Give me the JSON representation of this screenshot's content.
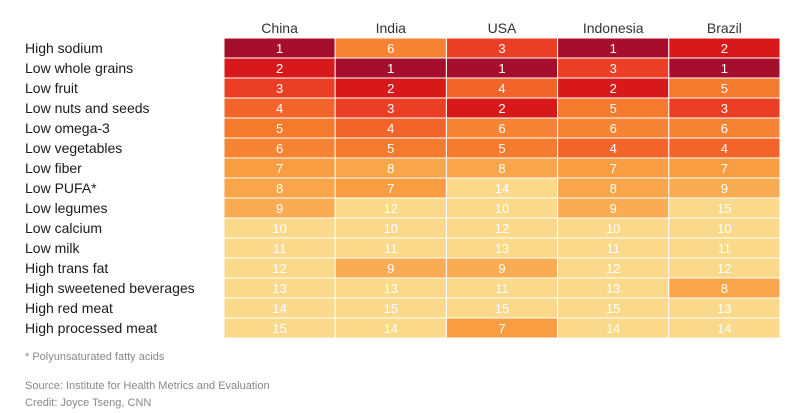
{
  "chart_data": {
    "type": "heatmap",
    "columns": [
      "China",
      "India",
      "USA",
      "Indonesia",
      "Brazil"
    ],
    "rows": [
      "High sodium",
      "Low whole grains",
      "Low fruit",
      "Low nuts and seeds",
      "Low omega-3",
      "Low vegetables",
      "Low fiber",
      "Low PUFA*",
      "Low legumes",
      "Low calcium",
      "Low milk",
      "High trans fat",
      "High sweetened beverages",
      "High red meat",
      "High processed meat"
    ],
    "values": [
      [
        1,
        6,
        3,
        1,
        2
      ],
      [
        2,
        1,
        1,
        3,
        1
      ],
      [
        3,
        2,
        4,
        2,
        5
      ],
      [
        4,
        3,
        2,
        5,
        3
      ],
      [
        5,
        4,
        6,
        6,
        6
      ],
      [
        6,
        5,
        5,
        4,
        4
      ],
      [
        7,
        8,
        8,
        7,
        7
      ],
      [
        8,
        7,
        14,
        8,
        9
      ],
      [
        9,
        12,
        10,
        9,
        15
      ],
      [
        10,
        10,
        12,
        10,
        10
      ],
      [
        11,
        11,
        13,
        11,
        11
      ],
      [
        12,
        9,
        9,
        12,
        12
      ],
      [
        13,
        13,
        11,
        13,
        8
      ],
      [
        14,
        15,
        15,
        15,
        13
      ],
      [
        15,
        14,
        7,
        14,
        14
      ]
    ],
    "value_range": [
      1,
      15
    ],
    "colors": {
      "1": "#a50f2d",
      "2": "#d7191c",
      "3": "#ea3e25",
      "4": "#f26429",
      "5": "#f47a2e",
      "6": "#f68434",
      "7": "#f89d42",
      "8": "#f9a64a",
      "9": "#faac52",
      "10": "#fbd98a",
      "11": "#fbd98a",
      "12": "#fbd98a",
      "13": "#fbd98a",
      "14": "#fbd98a",
      "15": "#fbd98a"
    },
    "title": "",
    "xlabel": "",
    "ylabel": ""
  },
  "footnote": "* Polyunsaturated fatty acids",
  "source": "Source: Institute for Health Metrics and Evaluation",
  "credit": "Credit: Joyce Tseng, CNN"
}
